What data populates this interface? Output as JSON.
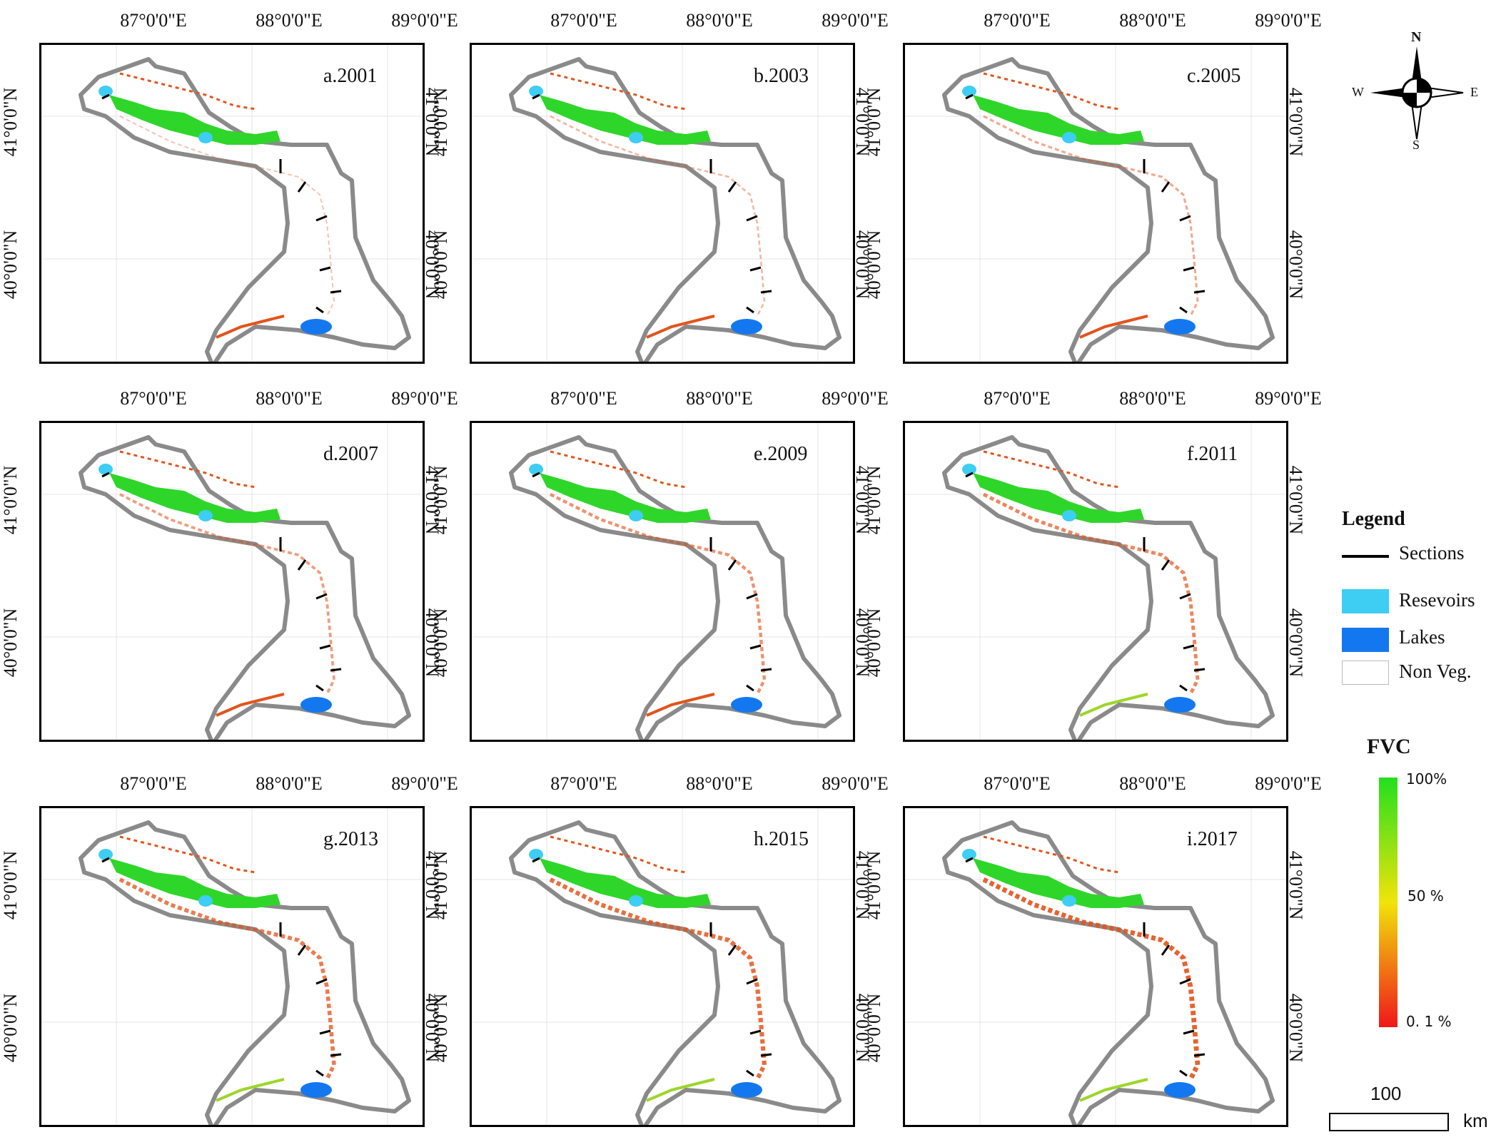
{
  "figure": {
    "panels": [
      {
        "id": "a",
        "label": "a.2001"
      },
      {
        "id": "b",
        "label": "b.2003"
      },
      {
        "id": "c",
        "label": "c.2005"
      },
      {
        "id": "d",
        "label": "d.2007"
      },
      {
        "id": "e",
        "label": "e.2009"
      },
      {
        "id": "f",
        "label": "f.2011"
      },
      {
        "id": "g",
        "label": "g.2013"
      },
      {
        "id": "h",
        "label": "h.2015"
      },
      {
        "id": "i",
        "label": "i.2017"
      }
    ],
    "lon_labels": [
      "87°0'0\"E",
      "88°0'0\"E",
      "89°0'0\"E"
    ],
    "lat_labels": [
      "41°0'0\"N",
      "40°0'0\"N"
    ]
  },
  "compass": {
    "n": "N",
    "s": "S",
    "e": "E",
    "w": "W"
  },
  "legend": {
    "title": "Legend",
    "items": [
      {
        "label": "Sections",
        "color": "#000000"
      },
      {
        "label": "Resevoirs",
        "color": "#3ecdf3"
      },
      {
        "label": "Lakes",
        "color": "#1378f0"
      },
      {
        "label": "Non Veg.",
        "color": "#ffffff"
      }
    ]
  },
  "fvc": {
    "title": "FVC",
    "ticks": [
      "100%",
      "50 %",
      "0. 1 %"
    ],
    "colors": [
      "#22e01e",
      "#f0e40a",
      "#f0161a"
    ]
  },
  "scalebar": {
    "value": "100",
    "unit": "km"
  },
  "colors": {
    "boundary": "#8a8a8a",
    "veg_high": "#2fd62a",
    "veg_low": "#e2541c",
    "reservoir": "#3ecdf3",
    "lake": "#1378f0"
  }
}
